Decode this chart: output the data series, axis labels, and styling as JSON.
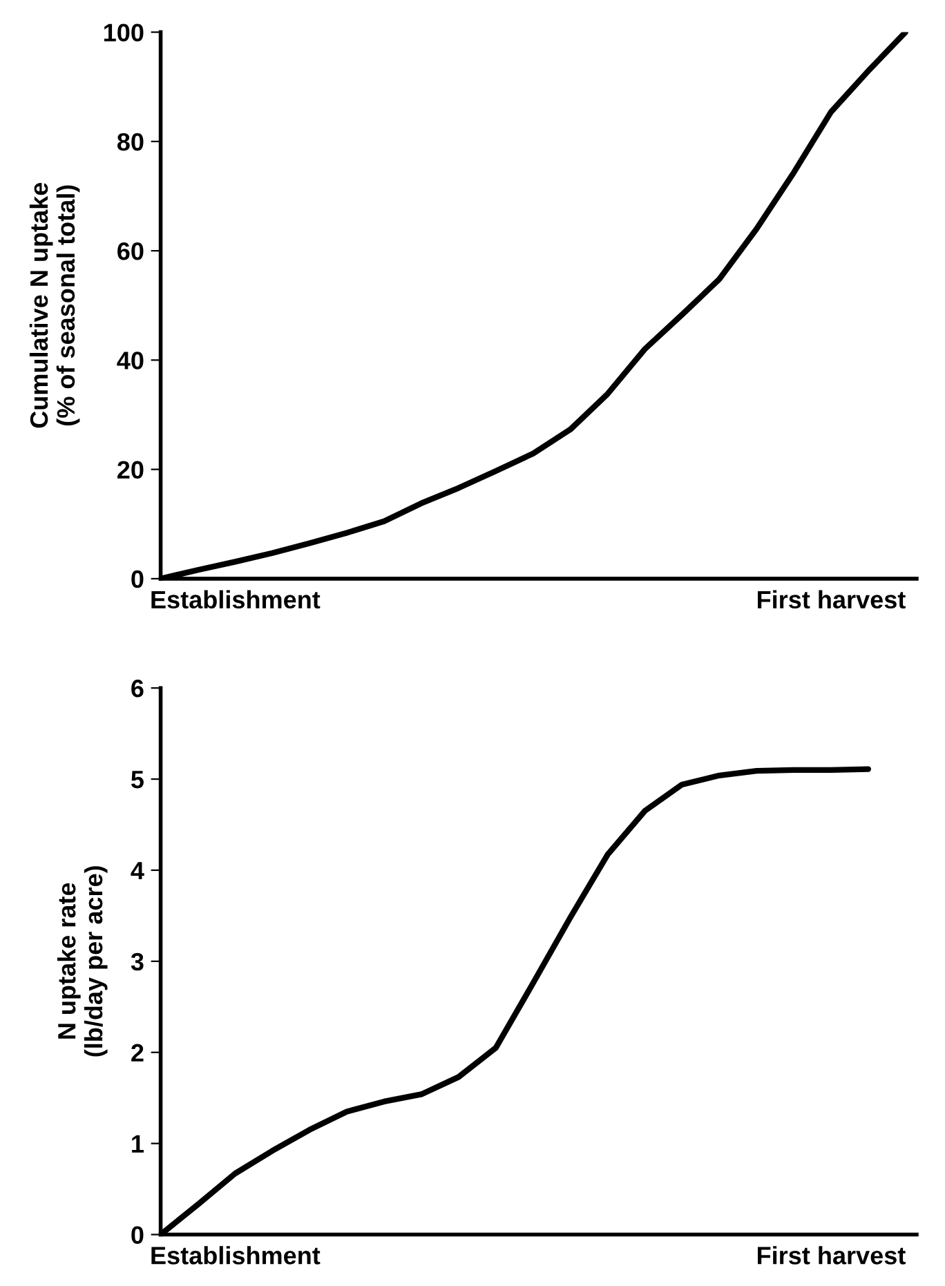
{
  "chart_data": [
    {
      "type": "line",
      "ylabel": "Cumulative N uptake\n(% of seasonal total)",
      "ylim": [
        0,
        100
      ],
      "yticks": [
        0,
        20,
        40,
        60,
        80,
        100
      ],
      "categories": [
        null,
        null,
        "Establishment",
        null,
        null,
        null,
        null,
        null,
        null,
        null,
        null,
        null,
        null,
        null,
        null,
        null,
        null,
        null,
        "First harvest",
        null,
        null
      ],
      "series": [
        {
          "color": "#000000",
          "values": [
            0,
            1.6,
            3.1,
            4.7,
            6.5,
            8.4,
            10.5,
            13.8,
            16.6,
            19.7,
            22.9,
            27.3,
            33.8,
            42,
            48.3,
            54.8,
            64,
            74.3,
            85.4,
            92.9,
            100
          ]
        }
      ],
      "grid": false,
      "marker": "none",
      "line_style": "solid"
    },
    {
      "type": "line",
      "ylabel": "N uptake rate\n(lb/day per acre)",
      "ylim": [
        0,
        6
      ],
      "yticks": [
        0,
        1,
        2,
        3,
        4,
        5,
        6
      ],
      "categories": [
        null,
        null,
        "Establishment",
        null,
        null,
        null,
        null,
        null,
        null,
        null,
        null,
        null,
        null,
        null,
        null,
        null,
        null,
        null,
        "First harvest",
        null,
        null
      ],
      "series": [
        {
          "color": "#000000",
          "values": [
            0,
            0.33,
            0.67,
            0.92,
            1.15,
            1.35,
            1.46,
            1.54,
            1.73,
            2.05,
            2.76,
            3.48,
            4.17,
            4.65,
            4.94,
            5.04,
            5.09,
            5.1,
            5.1,
            5.11,
            null
          ]
        }
      ],
      "grid": false,
      "marker": "none",
      "line_style": "solid"
    }
  ]
}
